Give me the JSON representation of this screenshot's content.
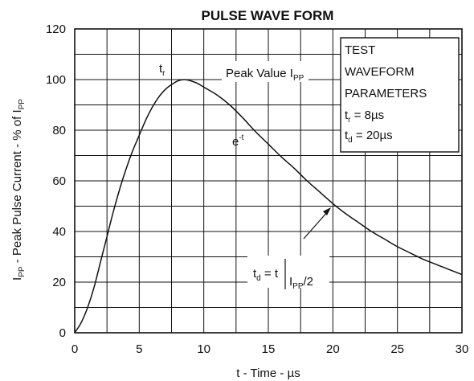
{
  "chart_data": {
    "type": "line",
    "title": "PULSE WAVE FORM",
    "xlabel": "t - Time - µs",
    "ylabel": {
      "main": "I",
      "sub": "PP",
      "rest": " - Peak Pulse Current - % of I",
      "sub2": "PP"
    },
    "xlim": [
      0,
      30
    ],
    "ylim": [
      0,
      120
    ],
    "x_ticks": [
      0,
      5,
      10,
      15,
      20,
      25,
      30
    ],
    "y_ticks": [
      0,
      20,
      40,
      60,
      80,
      100,
      120
    ],
    "x_minor_grid": [
      2.5,
      7.5,
      12.5,
      17.5,
      22.5,
      27.5
    ],
    "y_minor_grid": [
      10,
      30,
      50,
      70,
      90,
      110
    ],
    "grid": true,
    "series": [
      {
        "x": [
          0,
          0.5,
          1,
          1.5,
          2,
          2.5,
          3,
          3.5,
          4,
          4.5,
          5,
          5.5,
          6,
          6.5,
          7,
          7.5,
          8,
          8.5,
          9,
          9.5,
          10,
          11,
          12,
          13,
          14,
          15,
          16,
          17,
          18,
          19,
          20,
          21,
          22,
          23,
          24,
          25,
          26,
          27,
          28,
          29,
          30
        ],
        "y": [
          0,
          4,
          10,
          18,
          28,
          38,
          48,
          57,
          65,
          72,
          78,
          84,
          89,
          93,
          96,
          98,
          99.5,
          100,
          99.5,
          98.5,
          97,
          94,
          90,
          85,
          79.5,
          74.5,
          69.5,
          65,
          60,
          55.5,
          51,
          47,
          43.5,
          40,
          37,
          34,
          31.5,
          29,
          27,
          25,
          23
        ]
      }
    ],
    "annotations": {
      "tr_label": {
        "main": "t",
        "sub": "r"
      },
      "peak_label": {
        "main": "Peak Value I",
        "sub": "PP"
      },
      "decay_label": {
        "main": "e",
        "sup": "-t"
      },
      "td_label": {
        "main": "t",
        "sub": "d",
        "eq": " = t",
        "i": "I",
        "isub": "PP",
        "div": "/2"
      }
    },
    "legend_box": {
      "lines": [
        "TEST",
        "WAVEFORM",
        "PARAMETERS"
      ],
      "tr": {
        "main": "t",
        "sub": "r",
        "value": " = 8µs"
      },
      "td": {
        "main": "t",
        "sub": "d",
        "value": " = 20µs"
      }
    }
  }
}
